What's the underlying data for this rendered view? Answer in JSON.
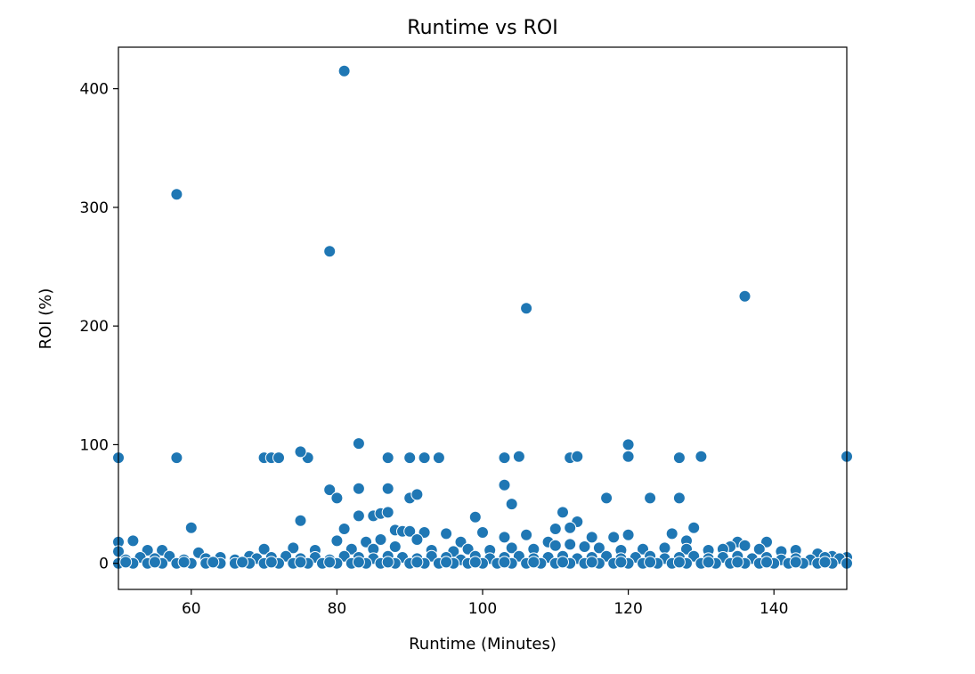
{
  "chart_data": {
    "type": "scatter",
    "title": "Runtime vs ROI",
    "xlabel": "Runtime (Minutes)",
    "ylabel": "ROI (%)",
    "xlim": [
      50,
      150
    ],
    "ylim": [
      -22,
      435
    ],
    "xticks": [
      60,
      80,
      100,
      120,
      140
    ],
    "yticks": [
      0,
      100,
      200,
      300,
      400
    ],
    "grid": false,
    "color": "#1f77b4",
    "points": [
      [
        81,
        415
      ],
      [
        58,
        311
      ],
      [
        79,
        263
      ],
      [
        106,
        215
      ],
      [
        136,
        225
      ],
      [
        50,
        89
      ],
      [
        58,
        89
      ],
      [
        70,
        89
      ],
      [
        71,
        89
      ],
      [
        72,
        89
      ],
      [
        76,
        89
      ],
      [
        87,
        89
      ],
      [
        90,
        89
      ],
      [
        92,
        89
      ],
      [
        94,
        89
      ],
      [
        103,
        89
      ],
      [
        105,
        90
      ],
      [
        112,
        89
      ],
      [
        113,
        90
      ],
      [
        120,
        90
      ],
      [
        127,
        89
      ],
      [
        130,
        90
      ],
      [
        150,
        90
      ],
      [
        75,
        94
      ],
      [
        83,
        101
      ],
      [
        120,
        100
      ],
      [
        79,
        62
      ],
      [
        83,
        63
      ],
      [
        87,
        63
      ],
      [
        80,
        55
      ],
      [
        90,
        55
      ],
      [
        91,
        58
      ],
      [
        103,
        66
      ],
      [
        104,
        50
      ],
      [
        117,
        55
      ],
      [
        123,
        55
      ],
      [
        127,
        55
      ],
      [
        75,
        36
      ],
      [
        83,
        40
      ],
      [
        99,
        39
      ],
      [
        111,
        43
      ],
      [
        113,
        35
      ],
      [
        60,
        30
      ],
      [
        81,
        29
      ],
      [
        85,
        40
      ],
      [
        86,
        42
      ],
      [
        87,
        43
      ],
      [
        88,
        28
      ],
      [
        89,
        27
      ],
      [
        90,
        27
      ],
      [
        92,
        26
      ],
      [
        95,
        25
      ],
      [
        100,
        26
      ],
      [
        106,
        24
      ],
      [
        110,
        29
      ],
      [
        112,
        30
      ],
      [
        115,
        22
      ],
      [
        118,
        22
      ],
      [
        120,
        24
      ],
      [
        126,
        25
      ],
      [
        129,
        30
      ],
      [
        128,
        19
      ],
      [
        50,
        18
      ],
      [
        52,
        19
      ],
      [
        80,
        19
      ],
      [
        84,
        18
      ],
      [
        86,
        20
      ],
      [
        91,
        20
      ],
      [
        97,
        18
      ],
      [
        103,
        22
      ],
      [
        109,
        18
      ],
      [
        112,
        16
      ],
      [
        135,
        18
      ],
      [
        136,
        15
      ],
      [
        139,
        18
      ],
      [
        134,
        14
      ],
      [
        50,
        10
      ],
      [
        54,
        11
      ],
      [
        56,
        11
      ],
      [
        61,
        9
      ],
      [
        70,
        12
      ],
      [
        74,
        13
      ],
      [
        77,
        11
      ],
      [
        82,
        12
      ],
      [
        85,
        12
      ],
      [
        88,
        14
      ],
      [
        93,
        11
      ],
      [
        96,
        10
      ],
      [
        98,
        12
      ],
      [
        101,
        11
      ],
      [
        104,
        13
      ],
      [
        107,
        12
      ],
      [
        110,
        15
      ],
      [
        114,
        14
      ],
      [
        116,
        13
      ],
      [
        119,
        11
      ],
      [
        122,
        12
      ],
      [
        125,
        13
      ],
      [
        128,
        12
      ],
      [
        131,
        11
      ],
      [
        133,
        12
      ],
      [
        138,
        12
      ],
      [
        141,
        10
      ],
      [
        143,
        11
      ],
      [
        146,
        8
      ],
      [
        148,
        6
      ],
      [
        150,
        5
      ],
      [
        51,
        3
      ],
      [
        53,
        5
      ],
      [
        55,
        4
      ],
      [
        57,
        6
      ],
      [
        59,
        3
      ],
      [
        62,
        4
      ],
      [
        64,
        5
      ],
      [
        66,
        3
      ],
      [
        68,
        6
      ],
      [
        69,
        4
      ],
      [
        71,
        5
      ],
      [
        73,
        6
      ],
      [
        75,
        4
      ],
      [
        77,
        5
      ],
      [
        79,
        3
      ],
      [
        81,
        6
      ],
      [
        83,
        5
      ],
      [
        85,
        4
      ],
      [
        87,
        6
      ],
      [
        89,
        5
      ],
      [
        91,
        4
      ],
      [
        93,
        6
      ],
      [
        95,
        5
      ],
      [
        97,
        3
      ],
      [
        99,
        6
      ],
      [
        101,
        4
      ],
      [
        103,
        5
      ],
      [
        105,
        6
      ],
      [
        107,
        4
      ],
      [
        109,
        5
      ],
      [
        111,
        6
      ],
      [
        113,
        4
      ],
      [
        115,
        5
      ],
      [
        117,
        6
      ],
      [
        119,
        4
      ],
      [
        121,
        5
      ],
      [
        123,
        6
      ],
      [
        125,
        4
      ],
      [
        127,
        5
      ],
      [
        129,
        6
      ],
      [
        131,
        4
      ],
      [
        133,
        5
      ],
      [
        135,
        6
      ],
      [
        137,
        4
      ],
      [
        139,
        5
      ],
      [
        141,
        3
      ],
      [
        143,
        4
      ],
      [
        145,
        3
      ],
      [
        147,
        5
      ],
      [
        149,
        4
      ],
      [
        50,
        0
      ],
      [
        52,
        0
      ],
      [
        54,
        0
      ],
      [
        56,
        0
      ],
      [
        58,
        0
      ],
      [
        60,
        0
      ],
      [
        62,
        0
      ],
      [
        64,
        0
      ],
      [
        66,
        0
      ],
      [
        68,
        0
      ],
      [
        70,
        0
      ],
      [
        72,
        0
      ],
      [
        74,
        0
      ],
      [
        76,
        0
      ],
      [
        78,
        0
      ],
      [
        80,
        0
      ],
      [
        82,
        0
      ],
      [
        84,
        0
      ],
      [
        86,
        0
      ],
      [
        88,
        0
      ],
      [
        90,
        0
      ],
      [
        92,
        0
      ],
      [
        94,
        0
      ],
      [
        96,
        0
      ],
      [
        98,
        0
      ],
      [
        100,
        0
      ],
      [
        102,
        0
      ],
      [
        104,
        0
      ],
      [
        106,
        0
      ],
      [
        108,
        0
      ],
      [
        110,
        0
      ],
      [
        112,
        0
      ],
      [
        114,
        0
      ],
      [
        116,
        0
      ],
      [
        118,
        0
      ],
      [
        120,
        0
      ],
      [
        122,
        0
      ],
      [
        124,
        0
      ],
      [
        126,
        0
      ],
      [
        128,
        0
      ],
      [
        130,
        0
      ],
      [
        132,
        0
      ],
      [
        134,
        0
      ],
      [
        136,
        0
      ],
      [
        138,
        0
      ],
      [
        140,
        0
      ],
      [
        142,
        0
      ],
      [
        144,
        0
      ],
      [
        146,
        0
      ],
      [
        148,
        0
      ],
      [
        150,
        0
      ],
      [
        51,
        1
      ],
      [
        55,
        1
      ],
      [
        59,
        1
      ],
      [
        63,
        1
      ],
      [
        67,
        1
      ],
      [
        71,
        1
      ],
      [
        75,
        1
      ],
      [
        79,
        1
      ],
      [
        83,
        1
      ],
      [
        87,
        1
      ],
      [
        91,
        1
      ],
      [
        95,
        1
      ],
      [
        99,
        1
      ],
      [
        103,
        1
      ],
      [
        107,
        1
      ],
      [
        111,
        1
      ],
      [
        115,
        1
      ],
      [
        119,
        1
      ],
      [
        123,
        1
      ],
      [
        127,
        1
      ],
      [
        131,
        1
      ],
      [
        135,
        1
      ],
      [
        139,
        1
      ],
      [
        143,
        1
      ],
      [
        147,
        1
      ]
    ]
  }
}
